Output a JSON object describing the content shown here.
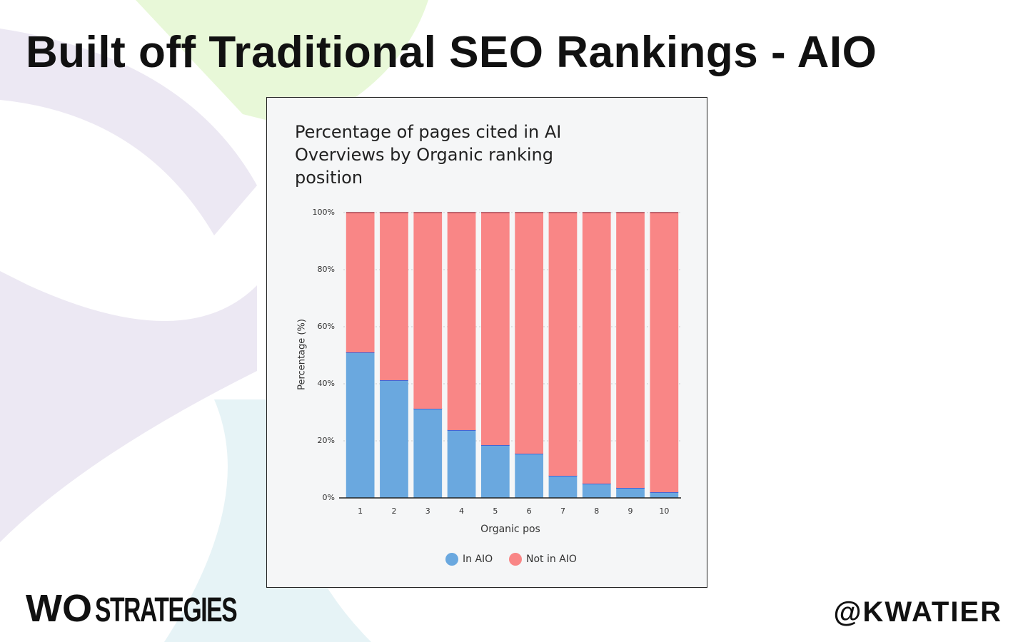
{
  "slide_title": "Built off Traditional SEO Rankings - AIO",
  "chart_data": {
    "type": "stacked_bar",
    "title": "Percentage of pages cited in AI Overviews by Organic ranking position",
    "x_label": "Organic pos",
    "y_label": "Percentage (%)",
    "categories": [
      "1",
      "2",
      "3",
      "4",
      "5",
      "6",
      "7",
      "8",
      "9",
      "10"
    ],
    "series": [
      {
        "name": "In AIO",
        "color": "#6aa8df",
        "values": [
          51,
          41.25,
          31.25,
          23.75,
          18.5,
          15.5,
          7.75,
          5,
          3.5,
          2
        ]
      },
      {
        "name": "Not in AIO",
        "color": "#f98686",
        "values": [
          49,
          58.75,
          68.75,
          76.25,
          81.5,
          84.5,
          92.25,
          95,
          96.5,
          98
        ]
      }
    ],
    "ylim": [
      0,
      100
    ],
    "yticks": [
      {
        "value": 0,
        "label": "0%"
      },
      {
        "value": 20,
        "label": "20%"
      },
      {
        "value": 40,
        "label": "40%"
      },
      {
        "value": 60,
        "label": "60%"
      },
      {
        "value": 80,
        "label": "80%"
      },
      {
        "value": 100,
        "label": "100%"
      }
    ],
    "grid": true
  },
  "footer": {
    "logo_left": "WO",
    "logo_right": "STRATEGIES",
    "handle": "@KWATIER"
  }
}
